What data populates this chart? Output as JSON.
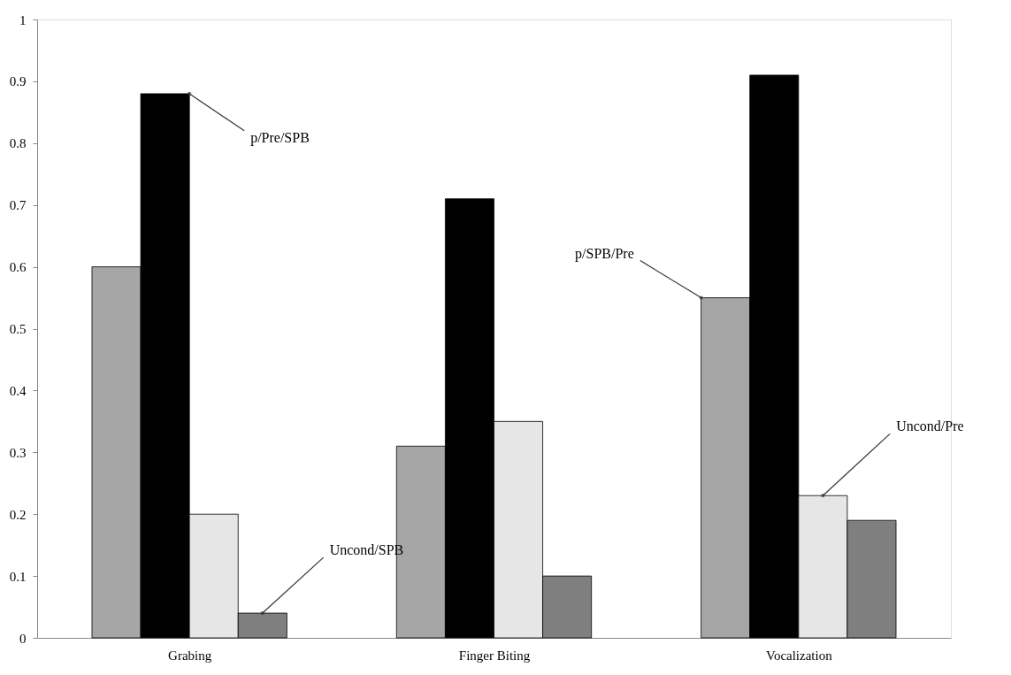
{
  "chart_data": {
    "type": "bar",
    "categories": [
      "Grabing",
      "Finger Biting",
      "Vocalization"
    ],
    "series": [
      {
        "name": "p/SPB/Pre",
        "color": "#a6a6a6",
        "values": [
          0.6,
          0.31,
          0.55
        ]
      },
      {
        "name": "p/Pre/SPB",
        "color": "#000000",
        "values": [
          0.88,
          0.71,
          0.91
        ]
      },
      {
        "name": "Uncond/Pre",
        "color": "#e6e6e6",
        "values": [
          0.2,
          0.35,
          0.23
        ]
      },
      {
        "name": "Uncond/SPB",
        "color": "#7f7f7f",
        "values": [
          0.04,
          0.1,
          0.19
        ]
      }
    ],
    "ylim": [
      0,
      1
    ],
    "yticks": [
      0,
      0.1,
      0.2,
      0.3,
      0.4,
      0.5,
      0.6,
      0.7,
      0.8,
      0.9,
      1
    ],
    "grid": false,
    "legend": false
  }
}
